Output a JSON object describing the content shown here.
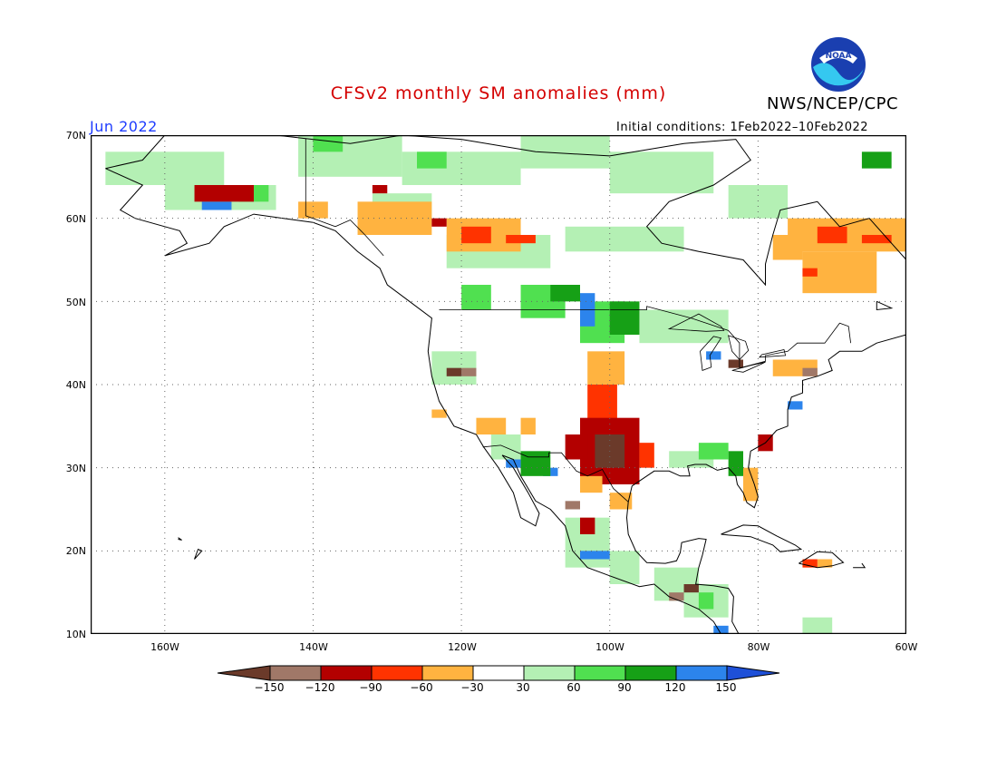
{
  "title": "CFSv2 monthly SM anomalies (mm)",
  "agency": "NWS/NCEP/CPC",
  "logo_text": "NOAA",
  "valid_month": "Jun 2022",
  "initial_conditions": "Initial conditions: 1Feb2022–10Feb2022",
  "lat_labels": [
    "70N",
    "60N",
    "50N",
    "40N",
    "30N",
    "20N",
    "10N"
  ],
  "lon_labels": [
    "160W",
    "140W",
    "120W",
    "100W",
    "80W",
    "60W"
  ],
  "colorbar": {
    "labels": [
      "−150",
      "−120",
      "−90",
      "−60",
      "−30",
      "30",
      "60",
      "90",
      "120",
      "150"
    ],
    "colors": [
      "#6b3a2a",
      "#a07868",
      "#b30000",
      "#ff3300",
      "#ffb340",
      "#ffffff",
      "#b4f0b4",
      "#50e050",
      "#16a016",
      "#2c84ec",
      "#1e50d8"
    ]
  },
  "map": {
    "extent": {
      "lon_min": -170,
      "lon_max": -60,
      "lat_min": 10,
      "lat_max": 70
    },
    "grid_lons": [
      -160,
      -140,
      -120,
      -100,
      -80
    ],
    "grid_lats": [
      20,
      30,
      40,
      50,
      60
    ],
    "colors": {
      "light_green": "#b4f0b4",
      "green": "#50e050",
      "dark_green": "#16a016",
      "blue": "#2c84ec",
      "orange": "#ffb340",
      "red_orange": "#ff3300",
      "dark_red": "#b30000",
      "brown": "#a07868",
      "dark_brown": "#6b3a2a"
    }
  }
}
